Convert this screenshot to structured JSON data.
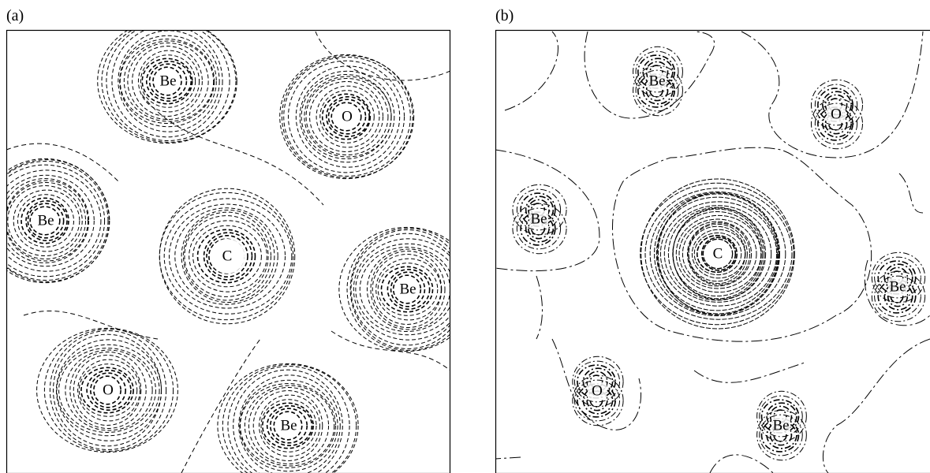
{
  "panels": [
    {
      "label": "(a)",
      "atoms": [
        "Be",
        "O",
        "Be",
        "C",
        "Be",
        "O",
        "Be"
      ]
    },
    {
      "label": "(b)",
      "atoms": [
        "Be",
        "O",
        "Be",
        "C",
        "Be",
        "O",
        "Be"
      ]
    }
  ]
}
